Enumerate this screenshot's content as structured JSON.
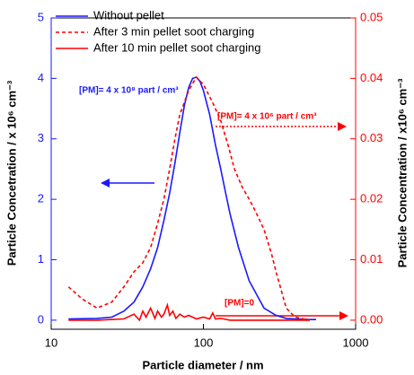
{
  "chart_data": {
    "type": "line",
    "x_label": "Particle diameter / nm",
    "y_label": "Particle Concetration / x 10⁶ cm⁻³",
    "y2_label": "Particle Concentration / x10⁶ cm⁻³",
    "x_log": true,
    "xlim": [
      10,
      1000
    ],
    "xticks": [
      10,
      100,
      1000
    ],
    "ylim": [
      -0.15,
      5
    ],
    "yticks": [
      0,
      1,
      2,
      3,
      4,
      5
    ],
    "y2lim": [
      -0.0015,
      0.05
    ],
    "y2ticks": [
      {
        "value": 0,
        "label": "0.00"
      },
      0.01,
      0.02,
      0.03,
      0.04,
      0.05
    ],
    "y_color": "#1a1aff",
    "y2_color": "#ff0000",
    "legend": "upper left",
    "annotations": [
      "[PM]= 4 x 10⁸ part / cm³",
      "[PM]= 4 x 10⁶ part / cm³",
      "[PM]=0"
    ],
    "series": [
      {
        "name": "Without pellet",
        "color": "#1a1aff",
        "dash": "solid",
        "x": [
          13,
          20,
          25,
          30,
          35,
          40,
          45,
          50,
          55,
          60,
          65,
          70,
          75,
          80,
          85,
          90,
          95,
          100,
          110,
          120,
          130,
          140,
          150,
          170,
          200,
          250,
          300,
          350,
          400,
          500,
          550
        ],
        "values": [
          0.02,
          0.03,
          0.05,
          0.15,
          0.3,
          0.55,
          0.85,
          1.2,
          1.65,
          2.1,
          2.6,
          3.1,
          3.55,
          3.85,
          4.0,
          4.02,
          3.95,
          3.8,
          3.4,
          2.9,
          2.5,
          2.1,
          1.75,
          1.2,
          0.65,
          0.2,
          0.08,
          0.03,
          0.02,
          0.01,
          0.01
        ]
      },
      {
        "name": "After 3 min pellet soot charging",
        "color": "#ff0000",
        "dash": "dashed",
        "axis": "y2",
        "x": [
          13,
          16,
          20,
          25,
          30,
          35,
          40,
          45,
          50,
          55,
          60,
          65,
          70,
          80,
          90,
          100,
          115,
          130,
          145,
          160,
          180,
          200,
          220,
          250,
          280,
          300,
          350,
          400,
          500
        ],
        "values": [
          0.0055,
          0.0035,
          0.002,
          0.003,
          0.0055,
          0.008,
          0.0095,
          0.012,
          0.016,
          0.02,
          0.025,
          0.03,
          0.034,
          0.038,
          0.0402,
          0.039,
          0.036,
          0.033,
          0.029,
          0.025,
          0.022,
          0.02,
          0.018,
          0.015,
          0.011,
          0.008,
          0.002,
          0.0005,
          0.0
        ]
      },
      {
        "name": "After 10 min pellet soot charging",
        "color": "#ff0000",
        "dash": "solid",
        "axis": "y2",
        "x": [
          13,
          20,
          30,
          35,
          38,
          40,
          42,
          45,
          48,
          50,
          53,
          55,
          58,
          60,
          63,
          66,
          70,
          75,
          80,
          90,
          100,
          110,
          115,
          120,
          130,
          150,
          200,
          300,
          500
        ],
        "values": [
          0.0,
          0.0,
          0.0002,
          0.001,
          0.0,
          0.0015,
          0.0005,
          0.002,
          0.0003,
          0.0015,
          0.0005,
          0.001,
          0.0025,
          0.0008,
          0.0015,
          0.0003,
          0.001,
          0.0005,
          0.0008,
          0.0002,
          0.0005,
          0.0002,
          0.0012,
          0.0002,
          0.0003,
          0.0,
          0.0,
          0.0,
          0.0
        ]
      }
    ]
  }
}
